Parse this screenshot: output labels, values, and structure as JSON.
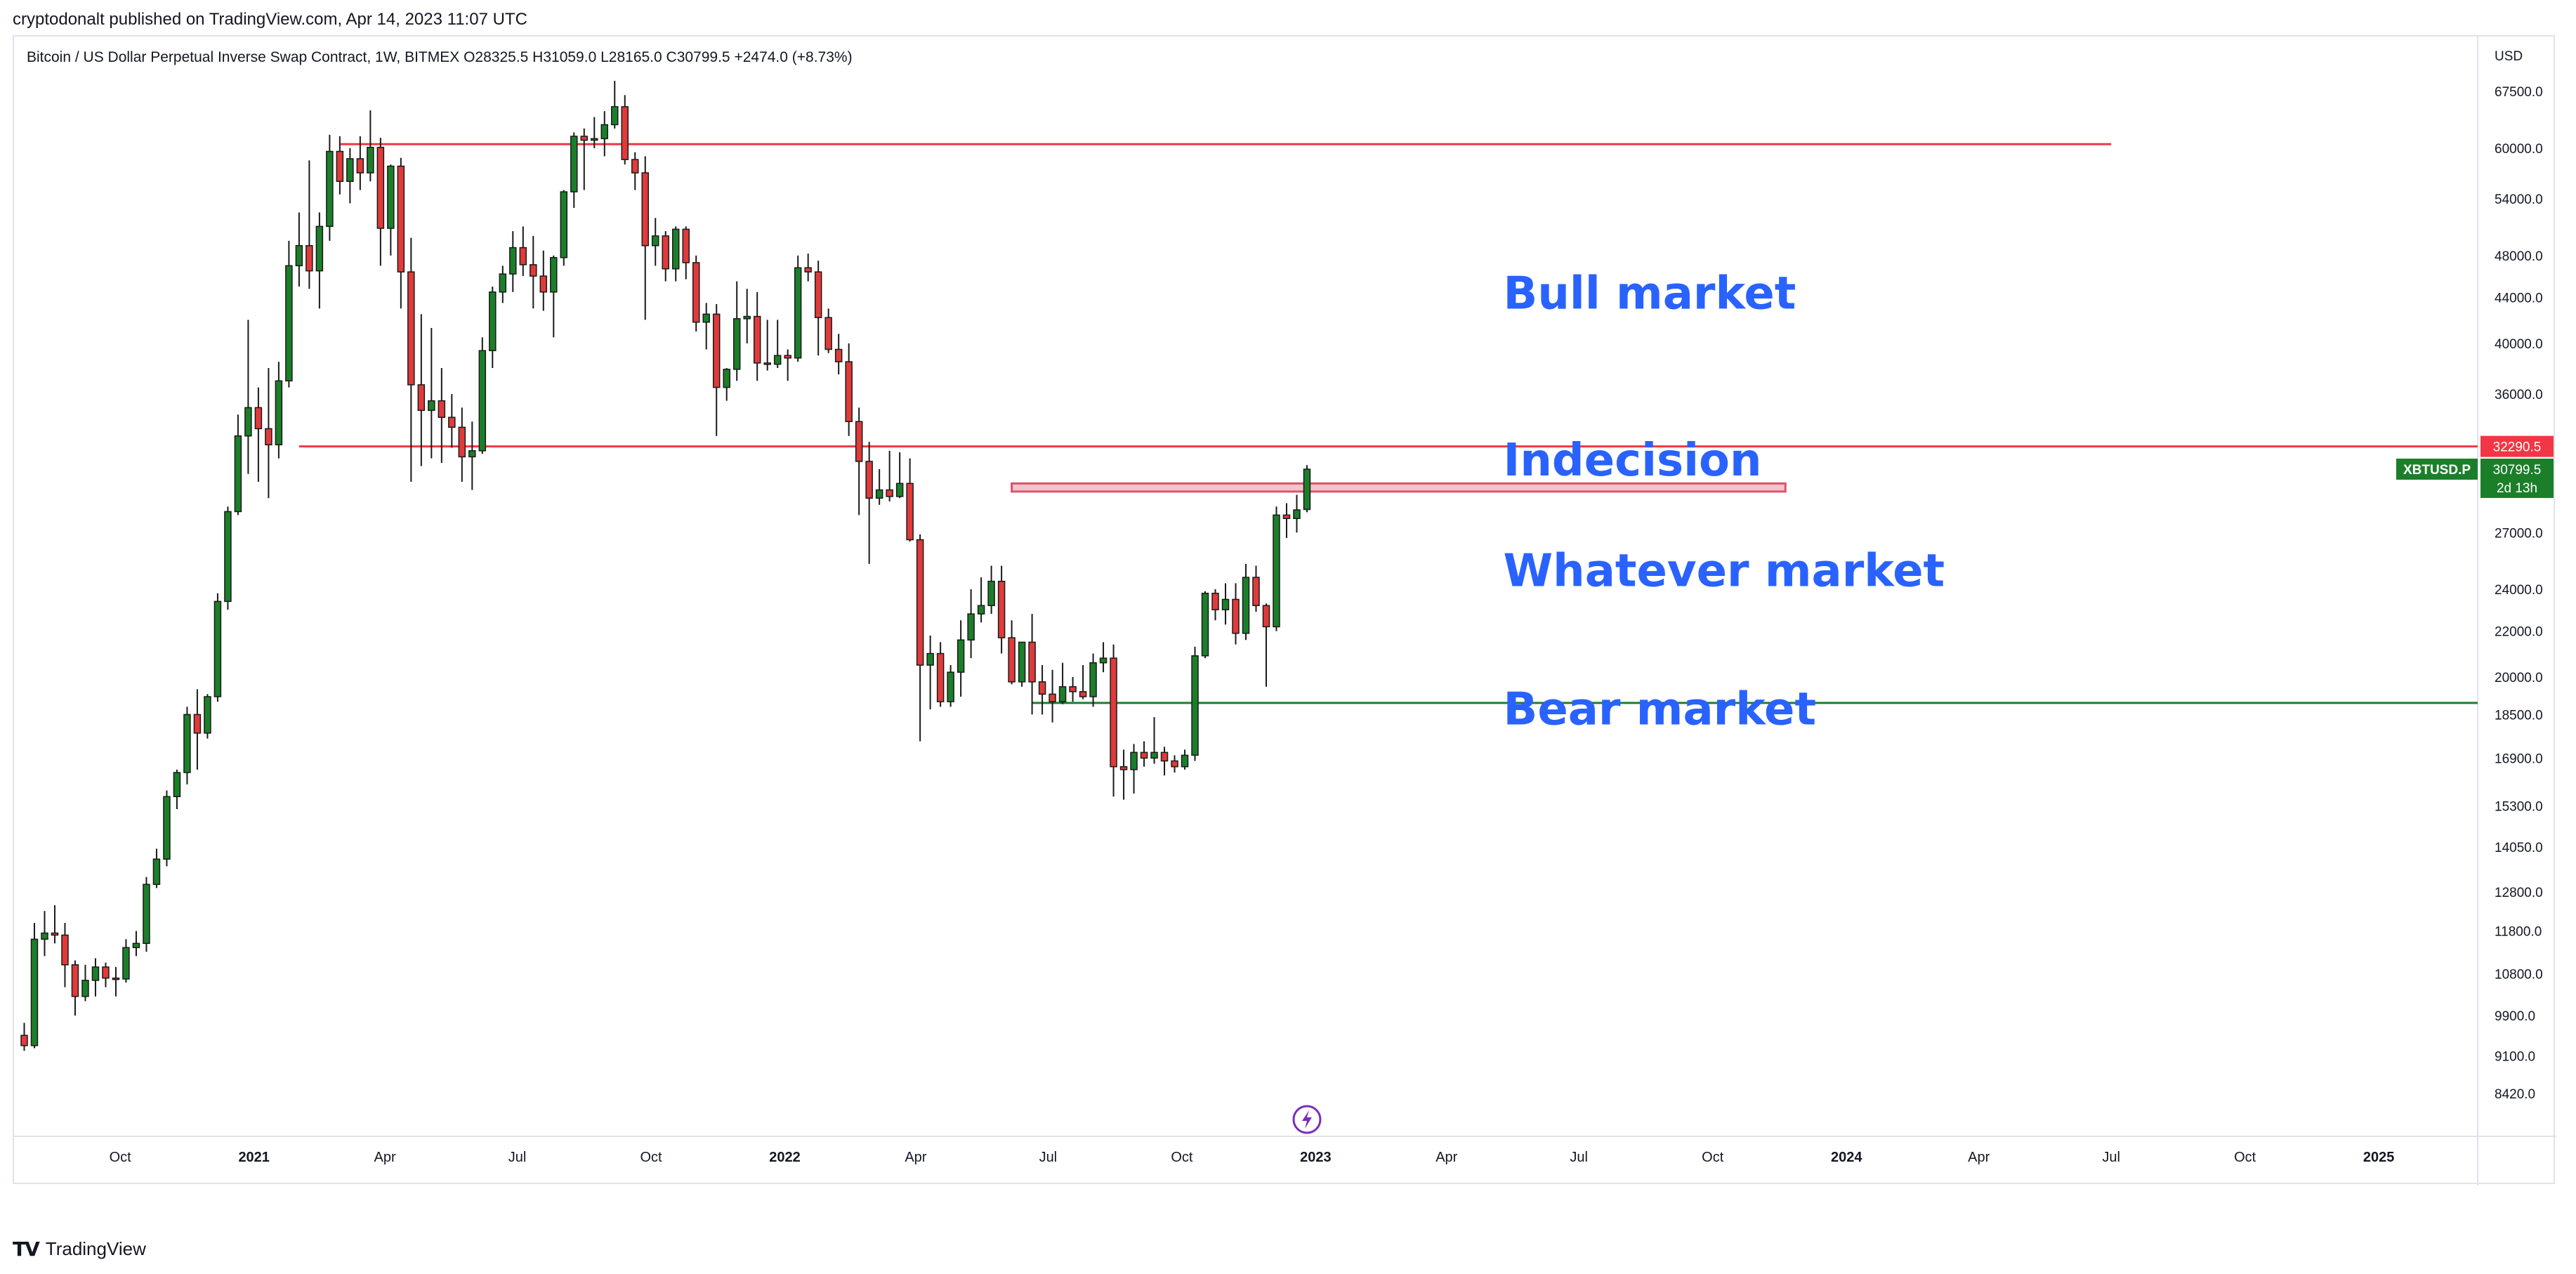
{
  "header": {
    "publish_line": "cryptodonalt published on TradingView.com, Apr 14, 2023 11:07 UTC"
  },
  "footer": {
    "brand": "TradingView",
    "logo_glyph": "TV"
  },
  "chart_data": {
    "type": "candlestick",
    "title": "Bitcoin / US Dollar Perpetual Inverse Swap Contract, 1W, BITMEX",
    "ohlc_text": {
      "o_label": "O",
      "o": "28325.5",
      "h_label": "H",
      "h": "31059.0",
      "l_label": "L",
      "l": "28165.0",
      "c_label": "C",
      "c": "30799.5",
      "change": "+2474.0 (+8.73%)"
    },
    "currency_label": "USD",
    "y_scale": "log",
    "ylim": [
      8000,
      72000
    ],
    "y_ticks": [
      "67500.0",
      "60000.0",
      "54000.0",
      "48000.0",
      "44000.0",
      "40000.0",
      "36000.0",
      "32000.0",
      "27000.0",
      "24000.0",
      "22000.0",
      "20000.0",
      "18500.0",
      "16900.0",
      "15300.0",
      "14050.0",
      "12800.0",
      "11800.0",
      "10800.0",
      "9900.0",
      "9100.0",
      "8420.0"
    ],
    "x_range": [
      "2020-07-20",
      "2025-03-10"
    ],
    "x_ticks": [
      {
        "label": "Oct",
        "date": "2020-10-01",
        "bold": false
      },
      {
        "label": "2021",
        "date": "2021-01-01",
        "bold": true
      },
      {
        "label": "Apr",
        "date": "2021-04-01",
        "bold": false
      },
      {
        "label": "Jul",
        "date": "2021-07-01",
        "bold": false
      },
      {
        "label": "Oct",
        "date": "2021-10-01",
        "bold": false
      },
      {
        "label": "2022",
        "date": "2022-01-01",
        "bold": true
      },
      {
        "label": "Apr",
        "date": "2022-04-01",
        "bold": false
      },
      {
        "label": "Jul",
        "date": "2022-07-01",
        "bold": false
      },
      {
        "label": "Oct",
        "date": "2022-10-01",
        "bold": false
      },
      {
        "label": "2023",
        "date": "2023-01-01",
        "bold": true
      },
      {
        "label": "Apr",
        "date": "2023-04-01",
        "bold": false
      },
      {
        "label": "Jul",
        "date": "2023-07-01",
        "bold": false
      },
      {
        "label": "Oct",
        "date": "2023-10-01",
        "bold": false
      },
      {
        "label": "2024",
        "date": "2024-01-01",
        "bold": true
      },
      {
        "label": "Apr",
        "date": "2024-04-01",
        "bold": false
      },
      {
        "label": "Jul",
        "date": "2024-07-01",
        "bold": false
      },
      {
        "label": "Oct",
        "date": "2024-10-01",
        "bold": false
      },
      {
        "label": "2025",
        "date": "2025-01-01",
        "bold": true
      }
    ],
    "candles_start": "2020-07-27",
    "candles_interval_days": 7,
    "candles": [
      [
        9500,
        9750,
        9200,
        9300
      ],
      [
        9300,
        12000,
        9250,
        11600
      ],
      [
        11600,
        12300,
        11200,
        11750
      ],
      [
        11750,
        12450,
        11500,
        11700
      ],
      [
        11700,
        12000,
        10500,
        11000
      ],
      [
        11000,
        11100,
        9900,
        10300
      ],
      [
        10300,
        11000,
        10200,
        10650
      ],
      [
        10650,
        11150,
        10300,
        10950
      ],
      [
        10950,
        11050,
        10500,
        10700
      ],
      [
        10700,
        10950,
        10300,
        10680
      ],
      [
        10680,
        11600,
        10600,
        11400
      ],
      [
        11400,
        11800,
        11200,
        11500
      ],
      [
        11500,
        13200,
        11300,
        13000
      ],
      [
        13000,
        14000,
        12900,
        13700
      ],
      [
        13700,
        15800,
        13500,
        15600
      ],
      [
        15600,
        16500,
        15200,
        16400
      ],
      [
        16400,
        18800,
        16000,
        18500
      ],
      [
        18500,
        19500,
        16500,
        17800
      ],
      [
        17800,
        19300,
        17600,
        19200
      ],
      [
        19200,
        23800,
        19000,
        23400
      ],
      [
        23400,
        28500,
        23000,
        28200
      ],
      [
        28200,
        34500,
        28000,
        33000
      ],
      [
        33000,
        42000,
        30500,
        35000
      ],
      [
        35000,
        36500,
        30000,
        33500
      ],
      [
        33500,
        38000,
        29000,
        32400
      ],
      [
        32400,
        38500,
        31500,
        37000
      ],
      [
        37000,
        49500,
        36500,
        47000
      ],
      [
        47000,
        52500,
        45000,
        49000
      ],
      [
        49000,
        58500,
        44800,
        46500
      ],
      [
        46500,
        52500,
        43000,
        51000
      ],
      [
        51000,
        61700,
        49500,
        59600
      ],
      [
        59600,
        61500,
        54500,
        56000
      ],
      [
        56000,
        60000,
        53500,
        58700
      ],
      [
        58700,
        61500,
        55000,
        57000
      ],
      [
        57000,
        64900,
        56000,
        60100
      ],
      [
        60100,
        61300,
        47000,
        50800
      ],
      [
        50800,
        58000,
        48000,
        57800
      ],
      [
        57800,
        58800,
        43000,
        46400
      ],
      [
        46400,
        49800,
        30000,
        36700
      ],
      [
        36700,
        42500,
        31000,
        34800
      ],
      [
        34800,
        41300,
        31500,
        35500
      ],
      [
        35500,
        38000,
        31200,
        34300
      ],
      [
        34300,
        36000,
        32200,
        33600
      ],
      [
        33600,
        35000,
        30000,
        31600
      ],
      [
        31600,
        34000,
        29500,
        32000
      ],
      [
        32000,
        40500,
        31800,
        39400
      ],
      [
        39400,
        45000,
        38000,
        44500
      ],
      [
        44500,
        47000,
        43500,
        46200
      ],
      [
        46200,
        50500,
        44500,
        48800
      ],
      [
        48800,
        51000,
        46000,
        47100
      ],
      [
        47100,
        50000,
        43000,
        46000
      ],
      [
        46000,
        48500,
        42800,
        44500
      ],
      [
        44500,
        48000,
        40500,
        47800
      ],
      [
        47800,
        55000,
        47000,
        54800
      ],
      [
        54800,
        62000,
        53000,
        61500
      ],
      [
        61500,
        62500,
        55000,
        61000
      ],
      [
        61000,
        64000,
        60000,
        61200
      ],
      [
        61200,
        64800,
        59000,
        63000
      ],
      [
        63000,
        69000,
        62500,
        65400
      ],
      [
        65400,
        67000,
        58000,
        58600
      ],
      [
        58600,
        59500,
        55000,
        57000
      ],
      [
        57000,
        59000,
        42000,
        49000
      ],
      [
        49000,
        51900,
        47000,
        50000
      ],
      [
        50000,
        50500,
        45500,
        46700
      ],
      [
        46700,
        51000,
        45500,
        50700
      ],
      [
        50700,
        51000,
        45700,
        47300
      ],
      [
        47300,
        48000,
        41000,
        41800
      ],
      [
        41800,
        43500,
        39500,
        42500
      ],
      [
        42500,
        43400,
        33000,
        36500
      ],
      [
        36500,
        38000,
        35500,
        37900
      ],
      [
        37900,
        45500,
        37000,
        42100
      ],
      [
        42100,
        44800,
        40000,
        42300
      ],
      [
        42300,
        44500,
        37000,
        38400
      ],
      [
        38400,
        42000,
        37800,
        38300
      ],
      [
        38300,
        42000,
        38000,
        39000
      ],
      [
        39000,
        39500,
        37000,
        38800
      ],
      [
        38800,
        48000,
        38500,
        46800
      ],
      [
        46800,
        48200,
        45500,
        46400
      ],
      [
        46400,
        47500,
        39000,
        42200
      ],
      [
        42200,
        43000,
        39200,
        39500
      ],
      [
        39500,
        40800,
        37500,
        38500
      ],
      [
        38500,
        40000,
        33000,
        34000
      ],
      [
        34000,
        35000,
        28000,
        31300
      ],
      [
        31300,
        32600,
        25300,
        29000
      ],
      [
        29000,
        30800,
        28600,
        29500
      ],
      [
        29500,
        32000,
        28800,
        29100
      ],
      [
        29100,
        31900,
        29000,
        29900
      ],
      [
        29900,
        31500,
        26500,
        26600
      ],
      [
        26600,
        26900,
        17500,
        20500
      ],
      [
        20500,
        21800,
        18700,
        21000
      ],
      [
        21000,
        21500,
        18800,
        19000
      ],
      [
        19000,
        20500,
        18800,
        20200
      ],
      [
        20200,
        22500,
        19200,
        21600
      ],
      [
        21600,
        24000,
        20800,
        22800
      ],
      [
        22800,
        24600,
        22400,
        23200
      ],
      [
        23200,
        25200,
        22800,
        24400
      ],
      [
        24400,
        25200,
        21000,
        21700
      ],
      [
        21700,
        22500,
        19700,
        19800
      ],
      [
        19800,
        21500,
        19600,
        21500
      ],
      [
        21500,
        22800,
        18500,
        19800
      ],
      [
        19800,
        20500,
        18500,
        19300
      ],
      [
        19300,
        20300,
        18200,
        19000
      ],
      [
        19000,
        20600,
        18900,
        19600
      ],
      [
        19600,
        20000,
        19000,
        19400
      ],
      [
        19400,
        20500,
        19100,
        19200
      ],
      [
        19200,
        21000,
        18800,
        20600
      ],
      [
        20600,
        21500,
        20200,
        20800
      ],
      [
        20800,
        21400,
        15600,
        16600
      ],
      [
        16600,
        17200,
        15500,
        16500
      ],
      [
        16500,
        17400,
        15700,
        17100
      ],
      [
        17100,
        17500,
        16600,
        16900
      ],
      [
        16900,
        18400,
        16700,
        17100
      ],
      [
        17100,
        17300,
        16300,
        16800
      ],
      [
        16800,
        17000,
        16400,
        16600
      ],
      [
        16600,
        17200,
        16500,
        17000
      ],
      [
        17000,
        21300,
        16800,
        20900
      ],
      [
        20900,
        23900,
        20800,
        23800
      ],
      [
        23800,
        24000,
        22500,
        23000
      ],
      [
        23000,
        24300,
        22300,
        23500
      ],
      [
        23500,
        24300,
        21400,
        21900
      ],
      [
        21900,
        25300,
        21600,
        24600
      ],
      [
        24600,
        25200,
        22900,
        23200
      ],
      [
        23200,
        23300,
        19600,
        22200
      ],
      [
        22200,
        28500,
        22000,
        28000
      ],
      [
        28000,
        28700,
        26700,
        27800
      ],
      [
        27800,
        29200,
        27000,
        28300
      ],
      [
        28325.5,
        31059,
        28165,
        30799.5
      ]
    ],
    "horizontal_levels": [
      {
        "value": 60500,
        "from": "2021-03-01",
        "to": "2024-07-01",
        "color": "#f23645"
      },
      {
        "value": 32290.5,
        "from": "2021-02-01",
        "to": "2025-03-10",
        "color": "#f23645",
        "label": "32290.5"
      },
      {
        "value": 18950,
        "from": "2022-06-20",
        "to": "2025-03-10",
        "color": "#1b7f2a"
      }
    ],
    "zone": {
      "from": "2022-06-06",
      "to": "2023-11-20",
      "low": 29400,
      "high": 29900,
      "fill": "#f2c4cc",
      "stroke": "#d9556b"
    },
    "annotations": [
      {
        "text": "Bull market",
        "date": "2023-05-10",
        "value": 43000
      },
      {
        "text": "Indecision",
        "date": "2023-05-10",
        "value": 30400
      },
      {
        "text": "Whatever market",
        "date": "2023-05-10",
        "value": 24150
      },
      {
        "text": "Bear market",
        "date": "2023-05-10",
        "value": 18120
      }
    ],
    "symbol_tag": "XBTUSD.P",
    "price_tag": "30799.5",
    "countdown": "2d 13h",
    "colors": {
      "up": "#1b7f2a",
      "down": "#e03a3a",
      "annotation": "#2962ff",
      "red_line": "#f23645",
      "green_line": "#1b7f2a",
      "grid": "#e0e3eb",
      "tag_green": "#1b7f2a",
      "tag_red": "#f23645",
      "flash": "#7b2cbf"
    }
  }
}
